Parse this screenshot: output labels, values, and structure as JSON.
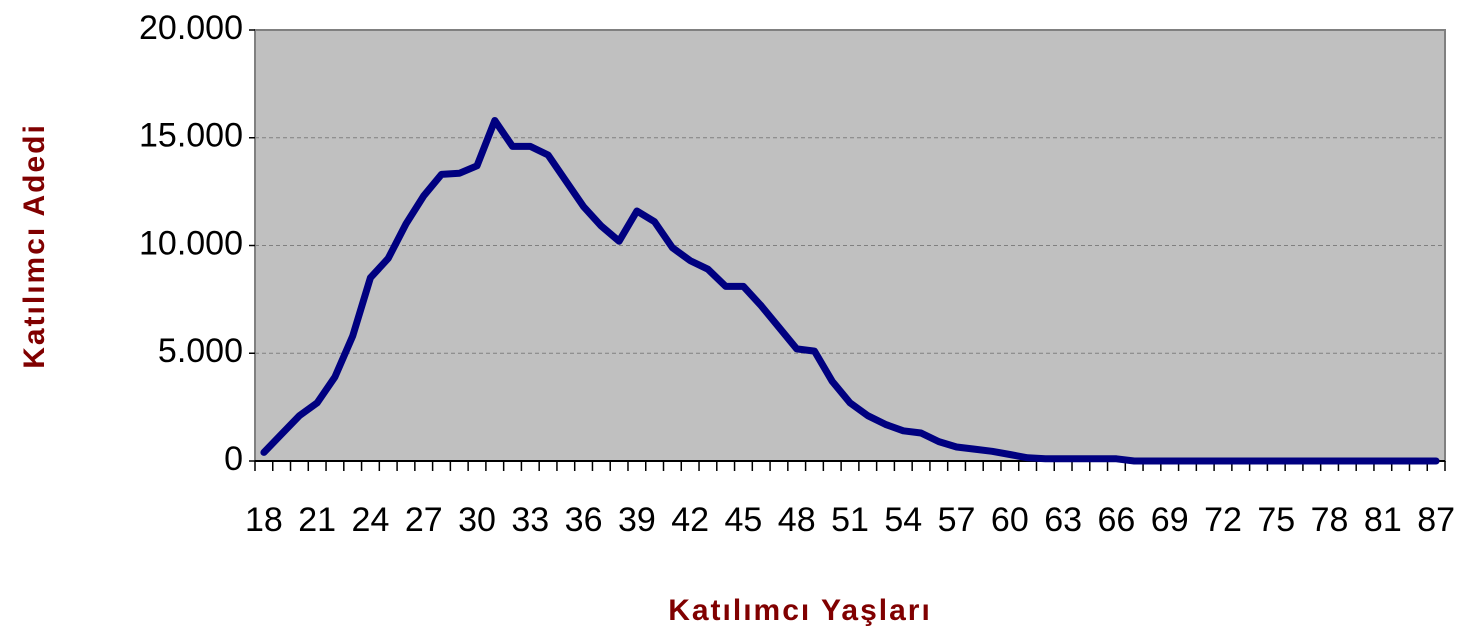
{
  "chart_data": {
    "type": "line",
    "xlabel": "Katılımcı Yaşları",
    "ylabel": "Katılımcı Adedi",
    "categories": [
      "18",
      null,
      null,
      "21",
      null,
      null,
      "24",
      null,
      null,
      "27",
      null,
      null,
      "30",
      null,
      null,
      "33",
      null,
      null,
      "36",
      null,
      null,
      "39",
      null,
      null,
      "42",
      null,
      null,
      "45",
      null,
      null,
      "48",
      null,
      null,
      "51",
      null,
      null,
      "54",
      null,
      null,
      "57",
      null,
      null,
      "60",
      null,
      null,
      "63",
      null,
      null,
      "66",
      null,
      null,
      "69",
      null,
      null,
      "72",
      null,
      null,
      "75",
      null,
      null,
      "78",
      null,
      null,
      "81",
      null,
      null,
      "87"
    ],
    "series": [
      {
        "name": "Katılımcı Adedi",
        "color": "#000080",
        "values": [
          400,
          1250,
          2100,
          2700,
          3900,
          5800,
          8500,
          9400,
          11000,
          12300,
          13300,
          13350,
          13700,
          15800,
          14600,
          14600,
          14200,
          13000,
          11800,
          10900,
          10200,
          11600,
          11100,
          9900,
          9300,
          8900,
          8100,
          8100,
          7200,
          6200,
          5200,
          5100,
          3700,
          2700,
          2100,
          1700,
          1400,
          1300,
          900,
          650,
          550,
          450,
          300,
          150,
          100,
          100,
          100,
          100,
          100,
          0,
          0,
          0,
          0,
          0,
          0,
          0,
          0,
          0,
          0,
          0,
          0,
          0,
          0,
          0,
          0,
          0,
          0
        ]
      }
    ],
    "ylim": [
      0,
      20000
    ],
    "yticks": [
      0,
      {
        "value": 5000,
        "label": "5.000"
      },
      {
        "value": 10000,
        "label": "10.000"
      },
      {
        "value": 15000,
        "label": "15.000"
      },
      {
        "value": 20000,
        "label": "20.000"
      }
    ],
    "grid": true,
    "plot_background": "#c0c0c0"
  }
}
